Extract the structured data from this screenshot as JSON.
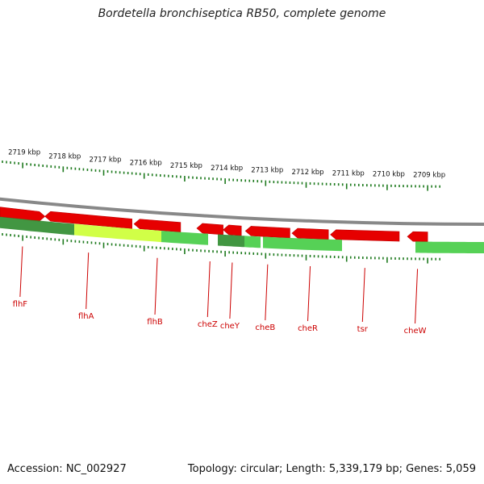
{
  "title": "Bordetella bronchiseptica RB50, complete genome",
  "footer": {
    "accession": "Accession: NC_002927",
    "summary": "Topology: circular; Length: 5,339,179 bp; Genes: 5,059"
  },
  "colors": {
    "forward_cds": "#e60000",
    "gc_dark": "#2e8b2e",
    "gc_light": "#44cc44",
    "gc_yellow": "#ccff33",
    "backbone": "#888888",
    "tick": "#1e7a1e",
    "label": "#cc0000"
  },
  "diagram": {
    "scale_labels": [
      {
        "text": "2719 kbp",
        "kbp": 2719
      },
      {
        "text": "2718 kbp",
        "kbp": 2718
      },
      {
        "text": "2717 kbp",
        "kbp": 2717
      },
      {
        "text": "2716 kbp",
        "kbp": 2716
      },
      {
        "text": "2715 kbp",
        "kbp": 2715
      },
      {
        "text": "2714 kbp",
        "kbp": 2714
      },
      {
        "text": "2713 kbp",
        "kbp": 2713
      },
      {
        "text": "2712 kbp",
        "kbp": 2712
      },
      {
        "text": "2711 kbp",
        "kbp": 2711
      },
      {
        "text": "2710 kbp",
        "kbp": 2710
      },
      {
        "text": "2709 kbp",
        "kbp": 2709
      }
    ],
    "genes": [
      {
        "name": "flhF",
        "start_kbp": 2719.6,
        "end_kbp": 2718.45
      },
      {
        "name": "flhA",
        "start_kbp": 2718.45,
        "end_kbp": 2716.3
      },
      {
        "name": "flhB",
        "start_kbp": 2716.25,
        "end_kbp": 2715.1
      },
      {
        "name": "cheZ",
        "start_kbp": 2714.7,
        "end_kbp": 2714.05
      },
      {
        "name": "cheY",
        "start_kbp": 2714.05,
        "end_kbp": 2713.6
      },
      {
        "name": "cheB",
        "start_kbp": 2713.5,
        "end_kbp": 2712.4
      },
      {
        "name": "cheR",
        "start_kbp": 2712.35,
        "end_kbp": 2711.45
      },
      {
        "name": "tsr",
        "start_kbp": 2711.4,
        "end_kbp": 2709.7
      },
      {
        "name": "cheW",
        "start_kbp": 2709.5,
        "end_kbp": 2709.0
      }
    ]
  }
}
